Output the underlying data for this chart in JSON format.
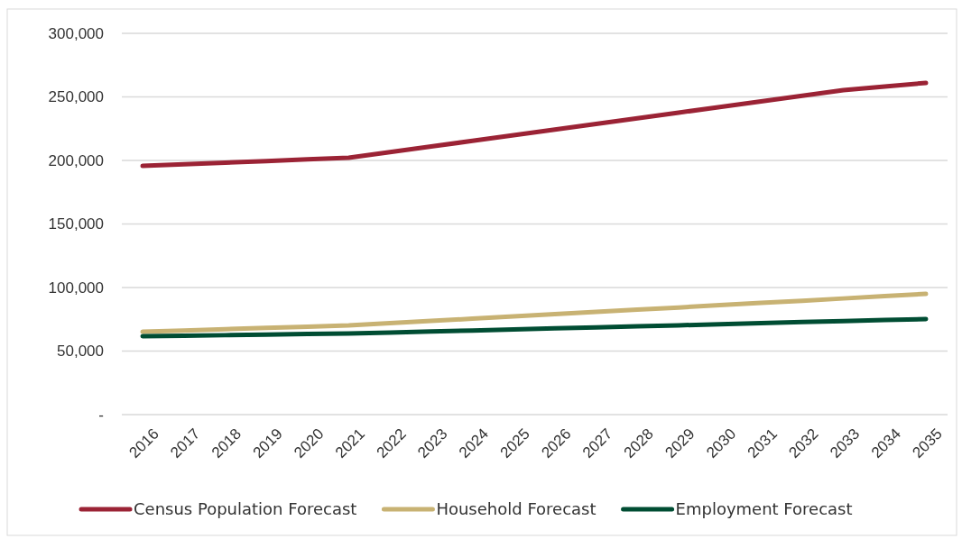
{
  "chart_data": {
    "type": "line",
    "categories": [
      "2016",
      "2017",
      "2018",
      "2019",
      "2020",
      "2021",
      "2022",
      "2023",
      "2024",
      "2025",
      "2026",
      "2027",
      "2028",
      "2029",
      "2030",
      "2031",
      "2032",
      "2033",
      "2034",
      "2035"
    ],
    "series": [
      {
        "name": "Census Population Forecast",
        "color": "#9b2335",
        "values": [
          195700,
          197000,
          198300,
          199500,
          200800,
          202100,
          206500,
          211000,
          215400,
          219800,
          224300,
          228700,
          233100,
          237600,
          242000,
          246400,
          250900,
          255300,
          258200,
          261000
        ]
      },
      {
        "name": "Household Forecast",
        "color": "#c8b273",
        "values": [
          65200,
          66200,
          67200,
          68200,
          69200,
          70200,
          72000,
          73700,
          75500,
          77300,
          79000,
          80800,
          82600,
          84300,
          86100,
          87900,
          89600,
          91400,
          93200,
          95000
        ]
      },
      {
        "name": "Employment Forecast",
        "color": "#004d33",
        "values": [
          61700,
          62100,
          62500,
          63000,
          63400,
          63800,
          64600,
          65400,
          66200,
          67100,
          67900,
          68700,
          69500,
          70300,
          71100,
          71900,
          72800,
          73600,
          74400,
          75200
        ]
      }
    ],
    "ylim": [
      0,
      300000
    ],
    "yticks": [
      {
        "value": 0,
        "label": "-"
      },
      {
        "value": 50000,
        "label": "50,000"
      },
      {
        "value": 100000,
        "label": "100,000"
      },
      {
        "value": 150000,
        "label": "150,000"
      },
      {
        "value": 200000,
        "label": "200,000"
      },
      {
        "value": 250000,
        "label": "250,000"
      },
      {
        "value": 300000,
        "label": "300,000"
      }
    ],
    "grid": "y",
    "legend": "bottom",
    "marker": "none",
    "line_style": "solid"
  }
}
